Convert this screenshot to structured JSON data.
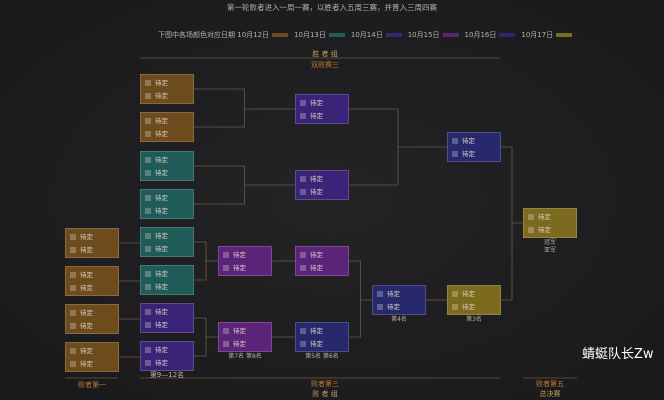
{
  "header": {
    "note": "第一轮败者进入一周一赛，以胜者入五周三赛，并晋入三周四赛",
    "legend_intro": "下图中各场颜色对应日期",
    "legend": [
      {
        "label": "10月12日",
        "color": "#6e4b1c"
      },
      {
        "label": "10月13日",
        "color": "#1f5b58"
      },
      {
        "label": "10月14日",
        "color": "#3b2478"
      },
      {
        "label": "10月15日",
        "color": "#5c2478"
      },
      {
        "label": "10月16日",
        "color": "#27296c"
      },
      {
        "label": "10月17日",
        "color": "#7c6a1e"
      }
    ]
  },
  "labels": {
    "top_group": "胜 者 组",
    "top_sub": "双败赛三",
    "bottom_left": "败者第一",
    "bottom_mid": "败者第三",
    "bottom_group": "败 者 组",
    "bottom_right": "败者第五",
    "final": "总决赛",
    "rank_9_12": "第9—12名",
    "rank_7_8": "第7名 第8名",
    "rank_5_6": "第5名 第6名",
    "rank_4": "第4名",
    "rank_3": "第3名",
    "champion": "冠军",
    "runner_up": "亚军",
    "watermark": "蜻蜓队长Zw"
  },
  "matches": [
    {
      "color": "#6e4b1c",
      "slots": [
        "待定",
        "待定"
      ]
    },
    {
      "color": "#6e4b1c",
      "slots": [
        "待定",
        "待定"
      ]
    },
    {
      "color": "#6e4b1c",
      "slots": [
        "待定",
        "待定"
      ]
    },
    {
      "color": "#6e4b1c",
      "slots": [
        "待定",
        "待定"
      ]
    },
    {
      "color": "#6e4b1c",
      "slots": [
        "待定",
        "待定"
      ]
    },
    {
      "color": "#6e4b1c",
      "slots": [
        "待定",
        "待定"
      ]
    },
    {
      "color": "#1f5b58",
      "slots": [
        "待定",
        "待定"
      ]
    },
    {
      "color": "#1f5b58",
      "slots": [
        "待定",
        "待定"
      ]
    },
    {
      "color": "#1f5b58",
      "slots": [
        "待定",
        "待定"
      ]
    },
    {
      "color": "#1f5b58",
      "slots": [
        "待定",
        "待定"
      ]
    },
    {
      "color": "#3b2478",
      "slots": [
        "待定",
        "待定"
      ]
    },
    {
      "color": "#3b2478",
      "slots": [
        "待定",
        "待定"
      ]
    },
    {
      "color": "#5c2478",
      "slots": [
        "待定",
        "待定"
      ]
    },
    {
      "color": "#5c2478",
      "slots": [
        "待定",
        "待定"
      ]
    },
    {
      "color": "#3b2478",
      "slots": [
        "待定",
        "待定"
      ]
    },
    {
      "color": "#3b2478",
      "slots": [
        "待定",
        "待定"
      ]
    },
    {
      "color": "#5c2478",
      "slots": [
        "待定",
        "待定"
      ]
    },
    {
      "color": "#27296c",
      "slots": [
        "待定",
        "待定"
      ]
    },
    {
      "color": "#27296c",
      "slots": [
        "待定",
        "待定"
      ]
    },
    {
      "color": "#27296c",
      "slots": [
        "待定",
        "待定"
      ]
    },
    {
      "color": "#7c6a1e",
      "slots": [
        "待定",
        "待定"
      ]
    },
    {
      "color": "#7c6a1e",
      "slots": [
        "待定",
        "待定"
      ]
    }
  ]
}
